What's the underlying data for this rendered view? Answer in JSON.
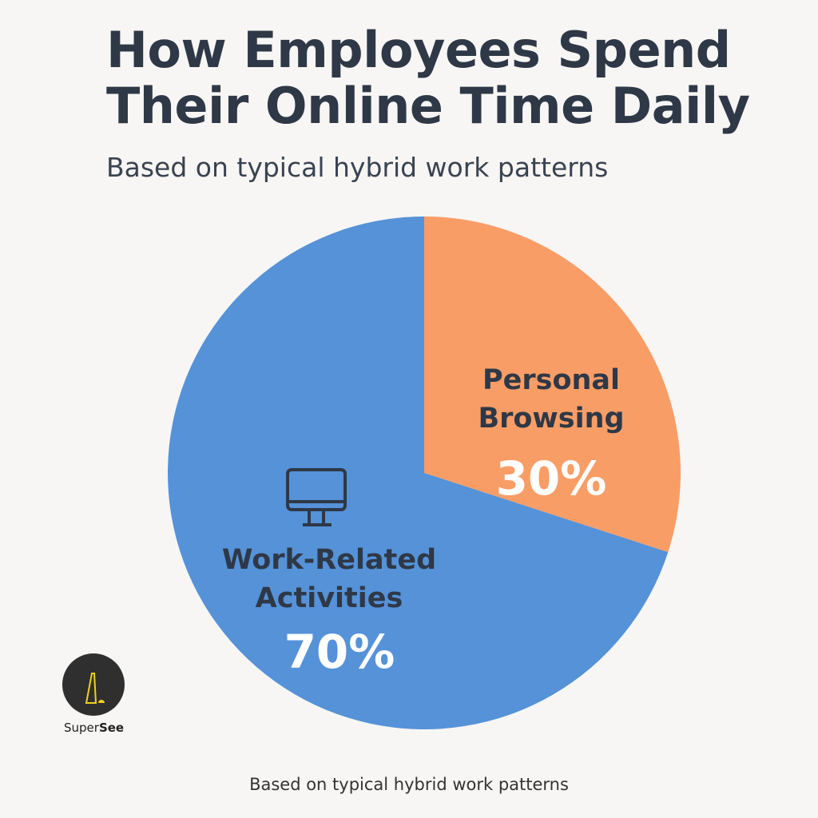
{
  "title_line1": "How Employees Spend",
  "title_line2": "Their Online Time Daily",
  "subtitle": "Based on typical hybrid work patterns",
  "footer": "Based on typical hybrid work patterns",
  "logo": {
    "text_a": "Super",
    "text_b": "See"
  },
  "colors": {
    "work": "#5592d8",
    "personal": "#f99d66",
    "text": "#2e3847"
  },
  "chart_data": {
    "type": "pie",
    "title": "How Employees Spend Their Online Time Daily",
    "subtitle": "Based on typical hybrid work patterns",
    "slices": [
      {
        "label_line1": "Personal",
        "label_line2": "Browsing",
        "value": 30,
        "display": "30%",
        "color": "#f99d66"
      },
      {
        "label_line1": "Work-Related",
        "label_line2": "Activities",
        "value": 70,
        "display": "70%",
        "color": "#5592d8",
        "icon": "monitor-icon"
      }
    ]
  }
}
